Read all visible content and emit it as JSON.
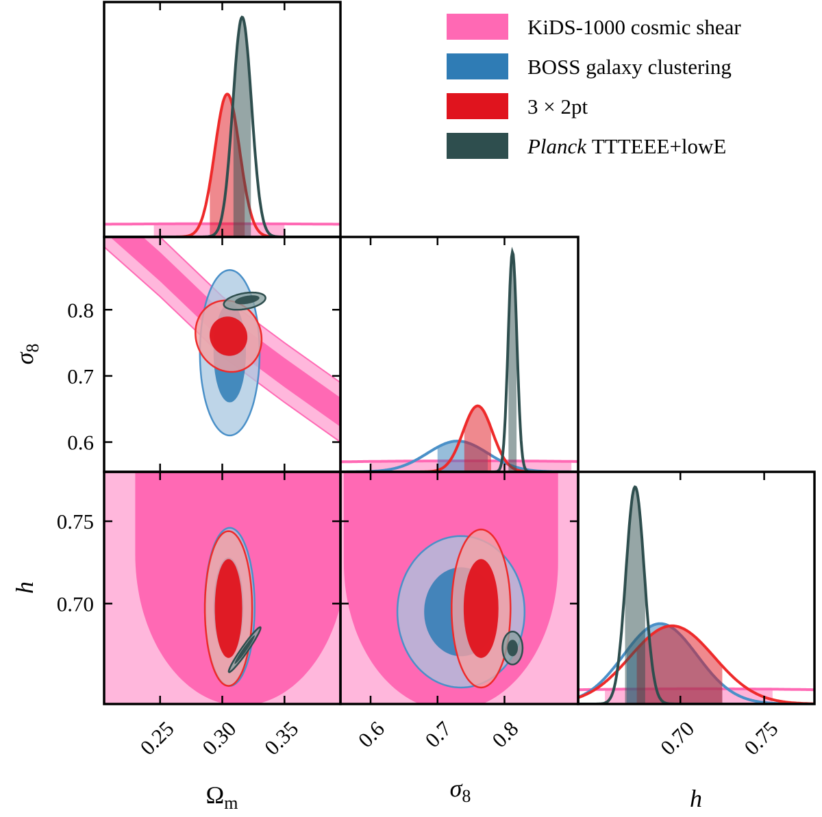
{
  "chart_data": {
    "type": "corner",
    "parameters": [
      {
        "key": "omega_m",
        "symbol": "Ω",
        "subscript": "m",
        "italic": false,
        "range": [
          0.205,
          0.395
        ],
        "ticks": [
          0.25,
          0.3,
          0.35
        ],
        "tick_labels": [
          "0.25",
          "0.30",
          "0.35"
        ]
      },
      {
        "key": "sigma_8",
        "symbol": "σ",
        "subscript": "8",
        "italic": true,
        "range": [
          0.555,
          0.91
        ],
        "ticks": [
          0.6,
          0.7,
          0.8
        ],
        "tick_labels": [
          "0.6",
          "0.7",
          "0.8"
        ]
      },
      {
        "key": "h",
        "symbol": "h",
        "subscript": "",
        "italic": true,
        "range": [
          0.639,
          0.78
        ],
        "ticks": [
          0.7,
          0.75
        ],
        "tick_labels": [
          "0.70",
          "0.75"
        ]
      }
    ],
    "y_axis_ticks": {
      "sigma_8": {
        "ticks": [
          0.6,
          0.7,
          0.8
        ],
        "labels": [
          "0.6",
          "0.7",
          "0.8"
        ]
      },
      "h": {
        "ticks": [
          0.7,
          0.75
        ],
        "labels": [
          "0.70",
          "0.75"
        ]
      }
    },
    "series": [
      {
        "name": "KiDS-1000 cosmic shear",
        "italic_prefix": "",
        "color": "#ff69b4",
        "light": "#ffb7dc",
        "line": "#ff69b4",
        "marginals": {
          "omega_m": {
            "mean": 0.3,
            "sd": 0.35,
            "amp": 0.06,
            "inner": [
              0.245,
              0.35
            ]
          },
          "sigma_8": {
            "mean": 0.75,
            "sd": 0.45,
            "amp": 0.05,
            "inner": [
              0.6,
              0.9
            ]
          },
          "h": {
            "mean": 0.71,
            "sd": 0.2,
            "amp": 0.07,
            "inner": [
              0.655,
              0.755
            ]
          }
        },
        "contours": {
          "omega_m|sigma_8": {
            "type": "band",
            "center_at": {
              "x": [
                0.205,
                0.25,
                0.3,
                0.35,
                0.395
              ],
              "y": [
                0.94,
                0.865,
                0.775,
                0.705,
                0.645
              ]
            },
            "inner_halfwidth": 0.022,
            "outer_halfwidth": 0.045
          },
          "omega_m|h": {
            "type": "ushape",
            "cx": 0.315,
            "cy": 0.73,
            "rx": 0.085,
            "ry": 0.092,
            "outer_fill": true
          },
          "sigma_8|h": {
            "type": "ushape",
            "cx": 0.72,
            "cy": 0.725,
            "rx": 0.16,
            "ry": 0.09,
            "outer_fill": true
          }
        }
      },
      {
        "name": "BOSS galaxy clustering",
        "italic_prefix": "",
        "color": "#2f7cb5",
        "light": "#a8c7e0",
        "line": "#4a90c8",
        "marginals": {
          "sigma_8": {
            "mean": 0.73,
            "sd": 0.045,
            "amp": 0.14,
            "inner": [
              0.7,
              0.775
            ]
          },
          "h": {
            "mean": 0.688,
            "sd": 0.022,
            "amp": 0.37,
            "inner": [
              0.668,
              0.725
            ]
          }
        },
        "contours": {
          "omega_m|sigma_8": {
            "inner": {
              "cx": 0.306,
              "cy": 0.735,
              "rx": 0.013,
              "ry": 0.075
            },
            "outer": {
              "cx": 0.306,
              "cy": 0.735,
              "rx": 0.024,
              "ry": 0.125
            }
          },
          "omega_m|h": {
            "inner": {
              "cx": 0.305,
              "cy": 0.698,
              "rx": 0.012,
              "ry": 0.03
            },
            "outer": {
              "cx": 0.306,
              "cy": 0.698,
              "rx": 0.02,
              "ry": 0.048
            }
          },
          "sigma_8|h": {
            "inner": {
              "cx": 0.735,
              "cy": 0.695,
              "rx": 0.055,
              "ry": 0.027
            },
            "outer": {
              "cx": 0.735,
              "cy": 0.695,
              "rx": 0.095,
              "ry": 0.046
            }
          }
        }
      },
      {
        "name": "3 × 2pt",
        "italic_prefix": "",
        "color": "#e0141e",
        "light": "#f4a1a4",
        "line": "#ee2a2a",
        "marginals": {
          "omega_m": {
            "mean": 0.304,
            "sd": 0.01,
            "amp": 0.65,
            "inner": [
              0.29,
              0.318
            ]
          },
          "sigma_8": {
            "mean": 0.76,
            "sd": 0.022,
            "amp": 0.3,
            "inner": [
              0.74,
              0.78
            ]
          },
          "h": {
            "mean": 0.695,
            "sd": 0.025,
            "amp": 0.36,
            "inner": [
              0.674,
              0.725
            ]
          }
        },
        "contours": {
          "omega_m|sigma_8": {
            "inner": {
              "cx": 0.305,
              "cy": 0.76,
              "rx": 0.015,
              "ry": 0.03,
              "rot": -25
            },
            "outer": {
              "cx": 0.305,
              "cy": 0.76,
              "rx": 0.026,
              "ry": 0.055,
              "rot": -25
            }
          },
          "omega_m|h": {
            "inner": {
              "cx": 0.305,
              "cy": 0.697,
              "rx": 0.011,
              "ry": 0.03
            },
            "outer": {
              "cx": 0.305,
              "cy": 0.697,
              "rx": 0.019,
              "ry": 0.047
            }
          },
          "sigma_8|h": {
            "inner": {
              "cx": 0.765,
              "cy": 0.697,
              "rx": 0.026,
              "ry": 0.03
            },
            "outer": {
              "cx": 0.765,
              "cy": 0.697,
              "rx": 0.044,
              "ry": 0.048
            }
          }
        }
      },
      {
        "name": "TTTEEE+lowE",
        "italic_prefix": "Planck",
        "color": "#2e4e4e",
        "light": "#8aa1a1",
        "line": "#2e4e4e",
        "marginals": {
          "omega_m": {
            "mean": 0.316,
            "sd": 0.0075,
            "amp": 1.0,
            "inner": [
              0.309,
              0.323
            ]
          },
          "sigma_8": {
            "mean": 0.812,
            "sd": 0.0065,
            "amp": 1.0,
            "inner": [
              0.806,
              0.818
            ]
          },
          "h": {
            "mean": 0.673,
            "sd": 0.0055,
            "amp": 1.0,
            "inner": [
              0.667,
              0.679
            ]
          }
        },
        "contours": {
          "omega_m|sigma_8": {
            "inner": {
              "cx": 0.32,
              "cy": 0.815,
              "rx": 0.01,
              "ry": 0.006,
              "rot": -10
            },
            "outer": {
              "cx": 0.318,
              "cy": 0.813,
              "rx": 0.017,
              "ry": 0.012,
              "rot": -10
            }
          },
          "omega_m|h": {
            "inner": {
              "cx": 0.318,
              "cy": 0.672,
              "rx": 0.014,
              "ry": 0.0012,
              "rot_deg_data": -55
            },
            "outer": {
              "cx": 0.318,
              "cy": 0.672,
              "rx": 0.022,
              "ry": 0.002,
              "rot_deg_data": -55
            }
          },
          "sigma_8|h": {
            "inner": {
              "cx": 0.812,
              "cy": 0.673,
              "rx": 0.008,
              "ry": 0.005
            },
            "outer": {
              "cx": 0.812,
              "cy": 0.673,
              "rx": 0.015,
              "ry": 0.01
            }
          }
        }
      }
    ],
    "legend": {
      "position": "top-right"
    }
  }
}
